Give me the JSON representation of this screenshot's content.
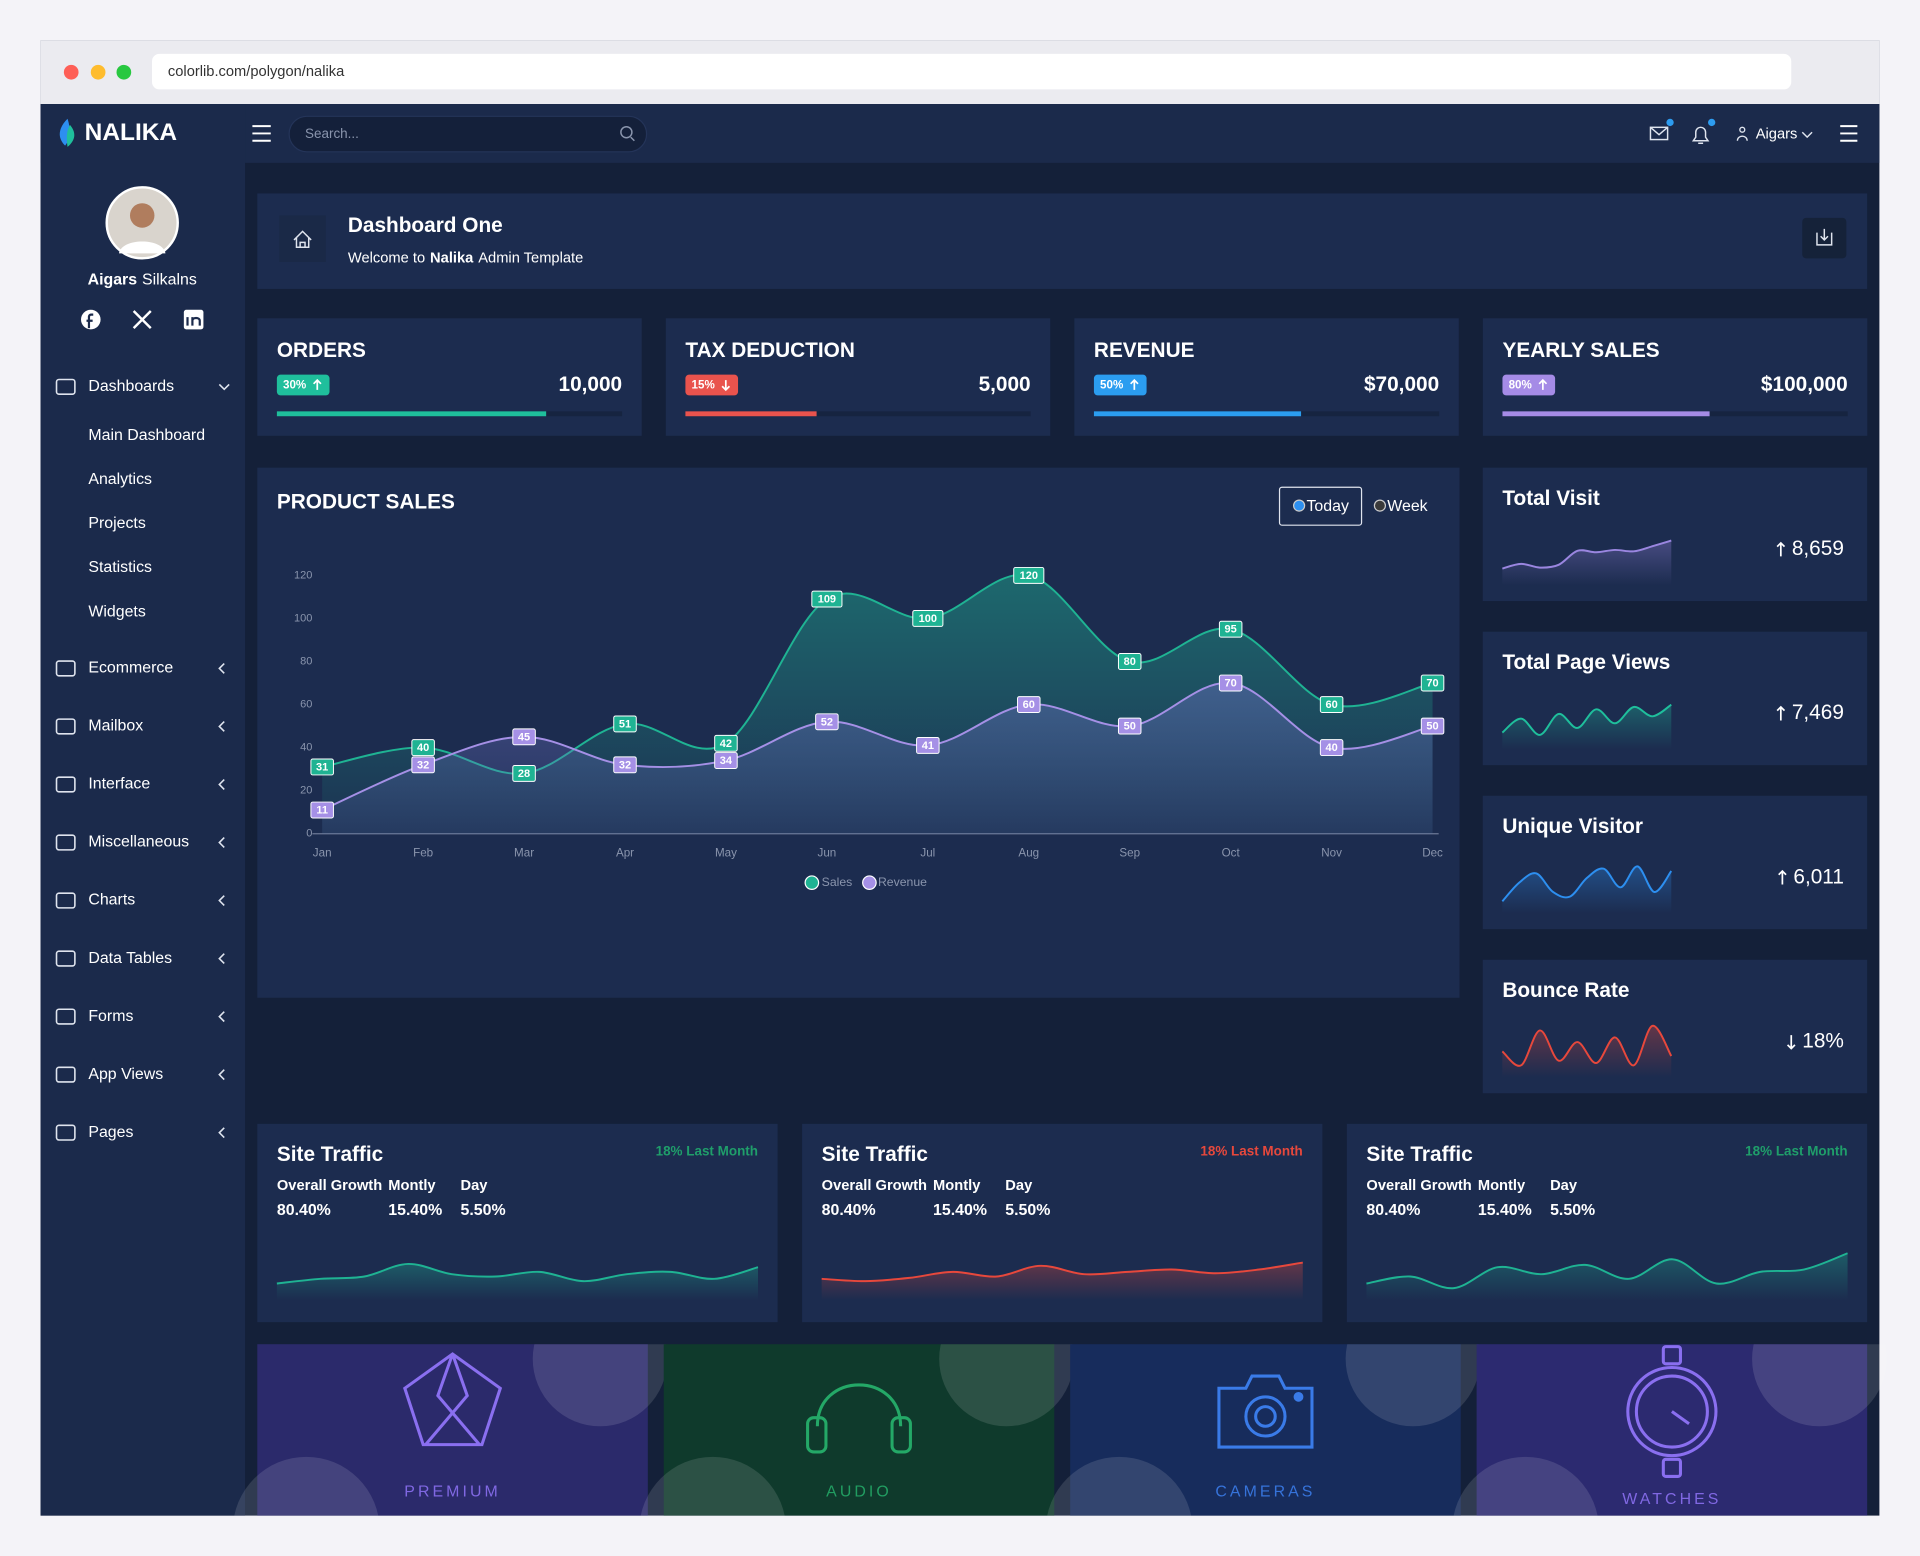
{
  "browser": {
    "url": "colorlib.com/polygon/nalika"
  },
  "brand": "NALIKA",
  "profile": {
    "first_name": "Aigars",
    "last_name": "Silkalns"
  },
  "nav": [
    {
      "label": "Dashboards",
      "children": [
        "Main Dashboard",
        "Analytics",
        "Projects",
        "Statistics",
        "Widgets"
      ]
    },
    {
      "label": "Ecommerce"
    },
    {
      "label": "Mailbox"
    },
    {
      "label": "Interface"
    },
    {
      "label": "Miscellaneous"
    },
    {
      "label": "Charts"
    },
    {
      "label": "Data Tables"
    },
    {
      "label": "Forms"
    },
    {
      "label": "App Views"
    },
    {
      "label": "Pages"
    }
  ],
  "topbar": {
    "search_placeholder": "Search...",
    "user": "Aigars"
  },
  "page_header": {
    "title": "Dashboard One",
    "subtitle": [
      "Welcome to",
      "Nalika",
      "Admin Template"
    ]
  },
  "progress_scale": [
    0,
    100
  ],
  "stats": [
    {
      "title": "ORDERS",
      "badge": "30%",
      "trend": "up",
      "value": "10,000",
      "progress": 78,
      "color": "#1fbf9c"
    },
    {
      "title": "TAX DEDUCTION",
      "badge": "15%",
      "trend": "down",
      "value": "5,000",
      "progress": 38,
      "color": "#e9534d"
    },
    {
      "title": "REVENUE",
      "badge": "50%",
      "trend": "up",
      "value": "$70,000",
      "progress": 60,
      "color": "#2b9df0"
    },
    {
      "title": "YEARLY SALES",
      "badge": "80%",
      "trend": "up",
      "value": "$100,000",
      "progress": 60,
      "color": "#a58be6"
    }
  ],
  "chart_data": {
    "type": "line",
    "title": "PRODUCT SALES",
    "toggles": [
      "Today",
      "Week"
    ],
    "categories": [
      "Jan",
      "Feb",
      "Mar",
      "Apr",
      "May",
      "Jun",
      "Jul",
      "Aug",
      "Sep",
      "Oct",
      "Nov",
      "Dec"
    ],
    "series": [
      {
        "name": "Sales",
        "color": "#1fb393",
        "values": [
          31,
          40,
          28,
          51,
          42,
          109,
          100,
          120,
          80,
          95,
          60,
          70
        ]
      },
      {
        "name": "Revenue",
        "color": "#a590e6",
        "values": [
          11,
          32,
          45,
          32,
          34,
          52,
          41,
          60,
          50,
          70,
          40,
          50
        ]
      }
    ],
    "ylim": [
      0,
      120
    ],
    "yticks": [
      0,
      20,
      40,
      60,
      80,
      100,
      120
    ],
    "grid": false
  },
  "trend_ylim": [
    0,
    100
  ],
  "summary_cards": [
    {
      "title": "Total Visit",
      "value": "8,659",
      "trend": "up",
      "color": "#9a86e0",
      "values": [
        20,
        30,
        22,
        28,
        58,
        55,
        60,
        57,
        68,
        80
      ]
    },
    {
      "title": "Total Page Views",
      "value": "7,469",
      "trend": "up",
      "color": "#1fbf9c",
      "values": [
        20,
        50,
        15,
        60,
        30,
        70,
        40,
        75,
        55,
        80
      ]
    },
    {
      "title": "Unique Visitor",
      "value": "6,011",
      "trend": "up",
      "color": "#2d8ff0",
      "values": [
        10,
        50,
        70,
        30,
        20,
        60,
        80,
        40,
        85,
        30,
        75
      ]
    },
    {
      "title": "Bounce Rate",
      "value": "18%",
      "trend": "down",
      "color": "#e7483c",
      "values": [
        40,
        10,
        85,
        20,
        60,
        15,
        70,
        10,
        95,
        30
      ]
    }
  ],
  "traffic_cards": [
    {
      "title": "Site Traffic",
      "change": "18% Last Month",
      "change_color": "#1f9e6a",
      "color": "#1fb393",
      "metrics": [
        {
          "label": "Overall Growth",
          "value": "80.40%"
        },
        {
          "label": "Montly",
          "value": "15.40%"
        },
        {
          "label": "Day",
          "value": "5.50%"
        }
      ],
      "values": [
        20,
        30,
        35,
        62,
        40,
        35,
        45,
        25,
        40,
        45,
        30,
        55
      ]
    },
    {
      "title": "Site Traffic",
      "change": "18% Last Month",
      "change_color": "#e7483c",
      "color": "#e7483c",
      "metrics": [
        {
          "label": "Overall Growth",
          "value": "80.40%"
        },
        {
          "label": "Montly",
          "value": "15.40%"
        },
        {
          "label": "Day",
          "value": "5.50%"
        }
      ],
      "values": [
        30,
        25,
        32,
        45,
        35,
        58,
        40,
        45,
        50,
        42,
        50,
        65
      ]
    },
    {
      "title": "Site Traffic",
      "change": "18% Last Month",
      "change_color": "#1f9e6a",
      "color": "#1fb393",
      "metrics": [
        {
          "label": "Overall Growth",
          "value": "80.40%"
        },
        {
          "label": "Montly",
          "value": "15.40%"
        },
        {
          "label": "Day",
          "value": "5.50%"
        }
      ],
      "values": [
        20,
        35,
        10,
        55,
        40,
        60,
        30,
        72,
        20,
        45,
        50,
        85
      ]
    }
  ],
  "tiles": [
    {
      "label": "PREMIUM",
      "color": "#2b2a6b",
      "accent": "#8a6ff0"
    },
    {
      "label": "AUDIO",
      "color": "#0f3a2c",
      "accent": "#24a867"
    },
    {
      "label": "CAMERAS",
      "color": "#172c5c",
      "accent": "#3a7be8"
    },
    {
      "label": "WATCHES",
      "color": "#2c2a70",
      "accent": "#8a6ff0"
    }
  ]
}
